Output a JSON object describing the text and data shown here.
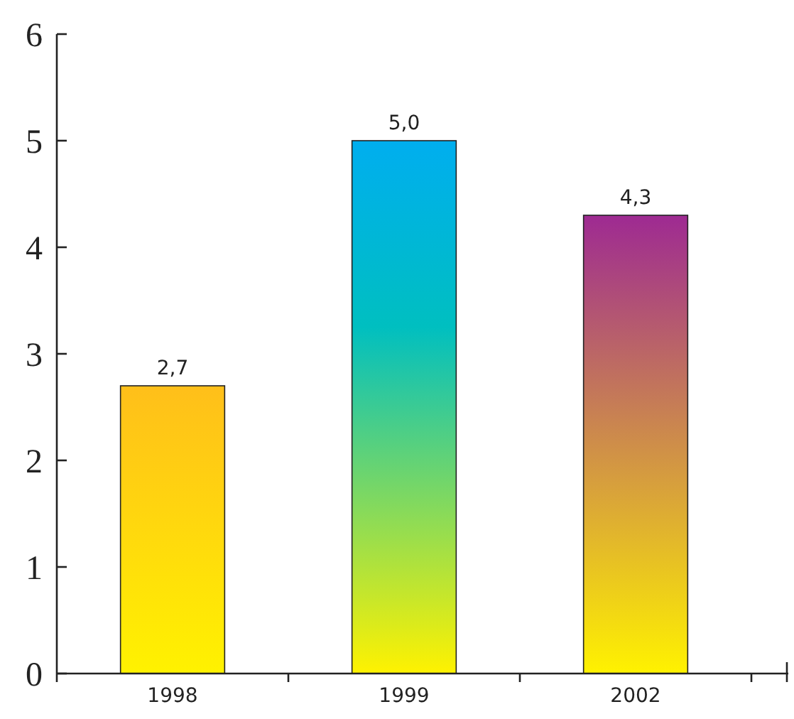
{
  "chart_data": {
    "type": "bar",
    "categories": [
      "1998",
      "1999",
      "2002"
    ],
    "values": [
      2.7,
      5.0,
      4.3
    ],
    "value_labels": [
      "2,7",
      "5,0",
      "4,3"
    ],
    "colors": [
      "#ffbf1a",
      "#00aeef",
      "#9e2a92"
    ],
    "ylim": [
      0,
      6
    ],
    "yticks": [
      0,
      1,
      2,
      3,
      4,
      5,
      6
    ],
    "grid": false
  }
}
